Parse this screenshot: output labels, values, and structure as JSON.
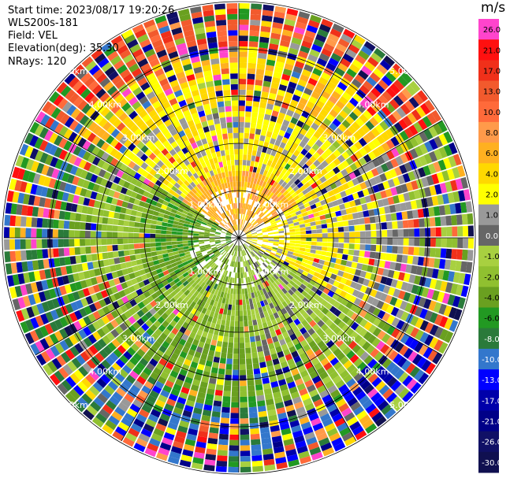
{
  "header": {
    "start_time": "Start time: 2023/08/17 19:20:26",
    "instrument": "WLS200s-181",
    "field": "Field: VEL",
    "elevation": "Elevation(deg): 35.30",
    "nrays": "NRays: 120"
  },
  "ring_labels": [
    "1.00km",
    "2.00km",
    "3.00km",
    "4.00km",
    "5.00km"
  ],
  "colorbar": {
    "unit": "m/s",
    "ticks": [
      "26.0",
      "21.0",
      "17.0",
      "13.0",
      "10.0",
      "8.0",
      "6.0",
      "4.0",
      "2.0",
      "1.0",
      "0.0",
      "-1.0",
      "-2.0",
      "-4.0",
      "-6.0",
      "-8.0",
      "-10.0",
      "-13.0",
      "-17.0",
      "-21.0",
      "-26.0",
      "-30.0"
    ],
    "colors": [
      "#ff44cc",
      "#ff1010",
      "#f0301a",
      "#f25a2d",
      "#ff6a3a",
      "#ff9a4a",
      "#ffb020",
      "#ffd800",
      "#ffff00",
      "#999999",
      "#666666",
      "#a8d040",
      "#90c030",
      "#6aa020",
      "#229922",
      "#2a7a3a",
      "#3377cc",
      "#0000ff",
      "#0000aa",
      "#000088",
      "#101066",
      "#101050"
    ]
  }
}
